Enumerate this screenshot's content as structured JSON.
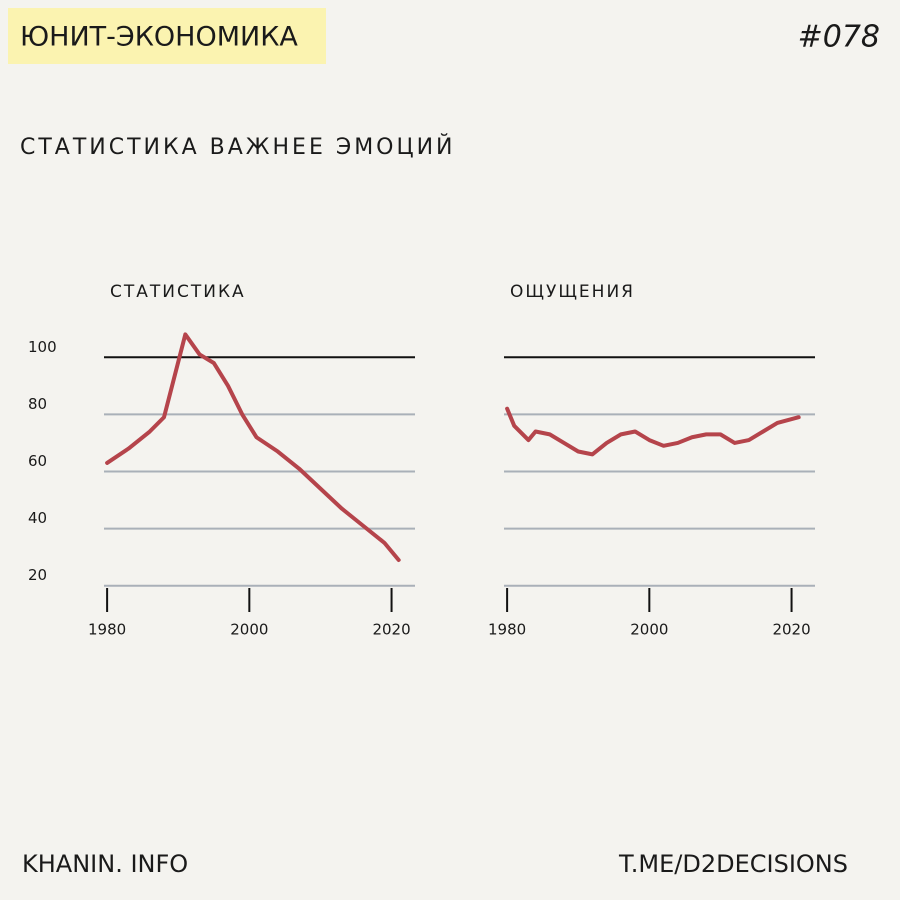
{
  "header": {
    "title": "ЮНИТ-ЭКОНОМИКА",
    "number": "#078",
    "subtitle": "СТАТИСТИКА ВАЖНЕЕ ЭМОЦИЙ"
  },
  "footer": {
    "left": "KHANIN. INFO",
    "right": "T.ME/D2DECISIONS"
  },
  "chart_data": [
    {
      "type": "line",
      "title": "СТАТИСТИКА",
      "color": "#b5444b",
      "grid_color": "#a9b0b8",
      "top_line_color": "#111111",
      "tick_labels": true,
      "x": [
        1980,
        1983,
        1986,
        1988,
        1991,
        1993,
        1995,
        1997,
        1999,
        2001,
        2004,
        2007,
        2010,
        2013,
        2016,
        2019,
        2021
      ],
      "values": [
        63,
        68,
        74,
        79,
        108,
        101,
        98,
        90,
        80,
        72,
        67,
        61,
        54,
        47,
        41,
        35,
        29
      ],
      "xlim": [
        1979,
        2024
      ],
      "xticks": [
        1980,
        2000,
        2020
      ],
      "ylim": [
        15,
        112
      ],
      "yticks": [
        20,
        40,
        60,
        80,
        100
      ]
    },
    {
      "type": "line",
      "title": "ОЩУЩЕНИЯ",
      "color": "#b5444b",
      "grid_color": "#a9b0b8",
      "top_line_color": "#111111",
      "tick_labels": false,
      "x": [
        1980,
        1981,
        1983,
        1984,
        1986,
        1988,
        1990,
        1992,
        1994,
        1996,
        1998,
        2000,
        2002,
        2004,
        2006,
        2008,
        2010,
        2012,
        2014,
        2016,
        2018,
        2021
      ],
      "values": [
        82,
        76,
        71,
        74,
        73,
        70,
        67,
        66,
        70,
        73,
        74,
        71,
        69,
        70,
        72,
        73,
        73,
        70,
        71,
        74,
        77,
        79
      ],
      "xlim": [
        1979,
        2024
      ],
      "xticks": [
        1980,
        2000,
        2020
      ],
      "ylim": [
        15,
        112
      ],
      "yticks": [
        20,
        40,
        60,
        80,
        100
      ]
    }
  ]
}
